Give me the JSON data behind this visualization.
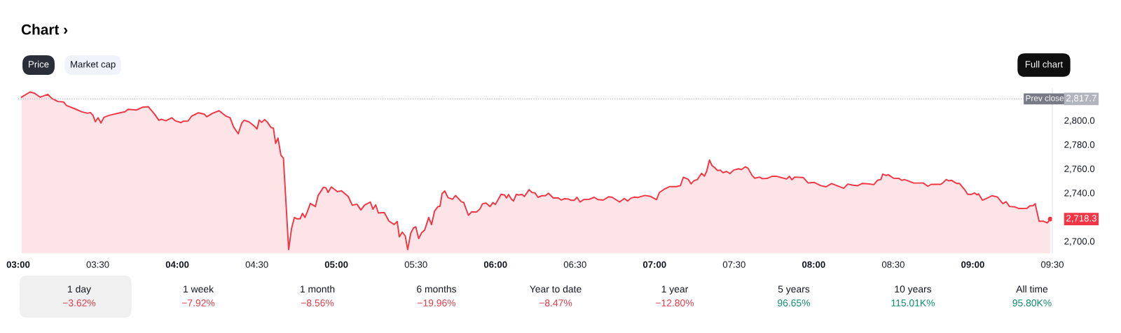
{
  "chart_data": [
    {
      "type": "area",
      "title": "Chart ›",
      "x": [
        3.021,
        3.074,
        3.103,
        3.138,
        3.186,
        3.211,
        3.25,
        3.285,
        3.304,
        3.356,
        3.4,
        3.436,
        3.454,
        3.47,
        3.485,
        3.502,
        3.52,
        3.539,
        3.576,
        3.649,
        3.671,
        3.69,
        3.744,
        3.781,
        3.818,
        3.855,
        3.884,
        3.902,
        3.928,
        3.965,
        3.987,
        4.023,
        4.038,
        4.067,
        4.089,
        4.133,
        4.17,
        4.185,
        4.222,
        4.263,
        4.303,
        4.332,
        4.354,
        4.383,
        4.405,
        4.42,
        4.449,
        4.479,
        4.501,
        4.515,
        4.53,
        4.549,
        4.567,
        4.589,
        4.604,
        4.618,
        4.633,
        4.651,
        4.667,
        4.7,
        4.718,
        4.736,
        4.753,
        4.772,
        4.787,
        4.802,
        4.816,
        4.836,
        4.868,
        4.885,
        4.919,
        4.934,
        4.948,
        4.968,
        5.007,
        5.032,
        5.074,
        5.1,
        5.129,
        5.154,
        5.176,
        5.213,
        5.23,
        5.247,
        5.264,
        5.301,
        5.33,
        5.363,
        5.382,
        5.396,
        5.414,
        5.433,
        5.448,
        5.467,
        5.485,
        5.499,
        5.517,
        5.536,
        5.555,
        5.58,
        5.598,
        5.617,
        5.639,
        5.651,
        5.664,
        5.681,
        5.702,
        5.73,
        5.749,
        5.786,
        5.8,
        5.83,
        5.849,
        5.881,
        5.903,
        5.918,
        5.94,
        5.966,
        5.984,
        5.999,
        6.035,
        6.057,
        6.069,
        6.082,
        6.101,
        6.113,
        6.131,
        6.145,
        6.167,
        6.182,
        6.211,
        6.23,
        6.248,
        6.267,
        6.292,
        6.314,
        6.333,
        6.363,
        6.395,
        6.414,
        6.432,
        6.457,
        6.476,
        6.495,
        6.512,
        6.532,
        6.554,
        6.586,
        6.62,
        6.644,
        6.677,
        6.711,
        6.733,
        6.78,
        6.809,
        6.831,
        6.85,
        6.872,
        6.894,
        6.938,
        6.975,
        7.012,
        7.03,
        7.063,
        7.093,
        7.137,
        7.162,
        7.181,
        7.21,
        7.229,
        7.247,
        7.269,
        7.295,
        7.313,
        7.327,
        7.345,
        7.361,
        7.376,
        7.396,
        7.413,
        7.43,
        7.452,
        7.474,
        7.497,
        7.528,
        7.545,
        7.57,
        7.587,
        7.613,
        7.63,
        7.66,
        7.677,
        7.706,
        7.74,
        7.765,
        7.791,
        7.83,
        7.847,
        7.863,
        7.88,
        7.935,
        7.965,
        8.002,
        8.045,
        8.078,
        8.112,
        8.146,
        8.189,
        8.214,
        8.248,
        8.277,
        8.304,
        8.341,
        8.378,
        8.4,
        8.422,
        8.434,
        8.456,
        8.468,
        8.502,
        8.536,
        8.553,
        8.57,
        8.629,
        8.689,
        8.717,
        8.739,
        8.799,
        8.816,
        8.833,
        8.849,
        8.867,
        8.9,
        8.917,
        8.948,
        8.968,
        8.993,
        9.011,
        9.027,
        9.036,
        9.061,
        9.087,
        9.121,
        9.155,
        9.189,
        9.209,
        9.231,
        9.265,
        9.29,
        9.341,
        9.358,
        9.378,
        9.392,
        9.417,
        9.443,
        9.468,
        9.487
      ],
      "series": [
        {
          "color": "#f23645",
          "values": [
            2819.1,
            2823.4,
            2822.4,
            2819.1,
            2821.4,
            2818.1,
            2815.5,
            2815.1,
            2812.2,
            2809.5,
            2807.0,
            2805.8,
            2806.4,
            2804.1,
            2798.8,
            2802.1,
            2797.7,
            2802.5,
            2804.2,
            2806.5,
            2807.0,
            2809.1,
            2808.5,
            2810.8,
            2811.2,
            2805.4,
            2800.0,
            2800.8,
            2799.6,
            2802.1,
            2799.6,
            2798.1,
            2799.2,
            2799.4,
            2803.3,
            2806.2,
            2805.0,
            2802.9,
            2805.8,
            2807.9,
            2803.7,
            2802.1,
            2794.4,
            2788.8,
            2797.7,
            2800.0,
            2798.8,
            2795.8,
            2792.9,
            2800.2,
            2798.3,
            2800.6,
            2798.3,
            2794.0,
            2793.5,
            2780.9,
            2785.3,
            2771.2,
            2768.7,
            2693.0,
            2710.6,
            2719.6,
            2718.5,
            2718.5,
            2723.0,
            2719.6,
            2723.9,
            2731.2,
            2728.7,
            2737.8,
            2744.6,
            2744.2,
            2740.3,
            2744.8,
            2740.9,
            2741.7,
            2737.0,
            2729.7,
            2730.6,
            2725.8,
            2729.7,
            2732.4,
            2726.4,
            2730.1,
            2723.3,
            2723.7,
            2716.6,
            2713.8,
            2716.2,
            2703.6,
            2707.5,
            2704.2,
            2693.0,
            2706.5,
            2711.0,
            2711.9,
            2702.1,
            2707.1,
            2709.2,
            2719.6,
            2713.7,
            2724.9,
            2728.7,
            2728.7,
            2739.3,
            2741.5,
            2735.9,
            2734.7,
            2737.8,
            2732.6,
            2732.0,
            2721.4,
            2724.1,
            2724.1,
            2726.8,
            2730.9,
            2731.5,
            2728.7,
            2732.0,
            2730.3,
            2738.8,
            2738.2,
            2735.7,
            2738.6,
            2734.5,
            2733.2,
            2738.8,
            2738.2,
            2738.6,
            2737.0,
            2742.6,
            2740.2,
            2740.0,
            2736.3,
            2737.6,
            2737.6,
            2739.6,
            2735.7,
            2735.7,
            2734.0,
            2735.1,
            2734.9,
            2733.8,
            2733.8,
            2736.3,
            2732.4,
            2734.4,
            2734.5,
            2736.3,
            2734.4,
            2734.0,
            2736.7,
            2736.3,
            2732.4,
            2735.3,
            2733.2,
            2735.5,
            2736.4,
            2736.1,
            2737.8,
            2737.0,
            2734.4,
            2740.2,
            2743.2,
            2745.1,
            2745.1,
            2745.9,
            2752.9,
            2751.3,
            2747.4,
            2750.0,
            2751.0,
            2756.1,
            2753.8,
            2757.7,
            2767.1,
            2762.5,
            2761.0,
            2758.4,
            2758.8,
            2756.6,
            2757.7,
            2755.9,
            2758.8,
            2759.9,
            2759.2,
            2761.5,
            2760.4,
            2754.3,
            2752.1,
            2753.0,
            2751.7,
            2751.9,
            2753.7,
            2753.7,
            2752.8,
            2751.4,
            2753.7,
            2750.8,
            2753.0,
            2752.6,
            2748.1,
            2748.6,
            2745.9,
            2745.0,
            2747.7,
            2745.9,
            2743.7,
            2747.2,
            2746.3,
            2745.9,
            2747.7,
            2747.4,
            2746.8,
            2750.3,
            2751.0,
            2755.5,
            2754.3,
            2755.0,
            2752.1,
            2751.9,
            2750.3,
            2751.0,
            2748.1,
            2748.1,
            2745.4,
            2747.0,
            2747.0,
            2748.8,
            2751.0,
            2749.9,
            2750.3,
            2747.7,
            2747.7,
            2742.8,
            2738.8,
            2738.8,
            2739.9,
            2738.3,
            2739.2,
            2733.9,
            2735.4,
            2737.6,
            2736.5,
            2731.0,
            2732.7,
            2728.7,
            2728.3,
            2727.0,
            2727.2,
            2729.2,
            2729.4,
            2731.0,
            2716.5,
            2716.5,
            2715.1,
            2718.3
          ]
        }
      ],
      "xlim": [
        3.0,
        9.5
      ],
      "ylim": [
        2690,
        2826
      ],
      "xticks": [
        {
          "value": 3,
          "label": "03:00"
        },
        {
          "value": 3.5,
          "label": "03:30"
        },
        {
          "value": 4,
          "label": "04:00"
        },
        {
          "value": 4.5,
          "label": "04:30"
        },
        {
          "value": 5,
          "label": "05:00"
        },
        {
          "value": 5.5,
          "label": "05:30"
        },
        {
          "value": 6,
          "label": "06:00"
        },
        {
          "value": 6.5,
          "label": "06:30"
        },
        {
          "value": 7,
          "label": "07:00"
        },
        {
          "value": 7.5,
          "label": "07:30"
        },
        {
          "value": 8,
          "label": "08:00"
        },
        {
          "value": 8.5,
          "label": "08:30"
        },
        {
          "value": 9,
          "label": "09:00"
        },
        {
          "value": 9.5,
          "label": "09:30"
        }
      ],
      "yticks": [
        {
          "value": 2700,
          "label": "2,700.0"
        },
        {
          "value": 2740,
          "label": "2,740.0"
        },
        {
          "value": 2760,
          "label": "2,760.0"
        },
        {
          "value": 2780,
          "label": "2,780.0"
        },
        {
          "value": 2800,
          "label": "2,800.0"
        }
      ],
      "ref_lines": [
        {
          "axis": "y",
          "value": 2817.7,
          "label": "Prev close",
          "color": "#b2b5be",
          "line_style": "dotted"
        }
      ],
      "annotations": [
        "Price",
        "Market cap",
        "Full chart",
        "2,817.7",
        {
          "text": "2,718.3",
          "x": 9.487,
          "y": 2718.3
        }
      ],
      "grid": false,
      "legend": false
    },
    {
      "type": "other",
      "annotations": [
        "1 day",
        "−3.62%",
        "1 week",
        "−7.92%",
        "1 month",
        "−8.56%",
        "6 months",
        "−19.96%",
        "Year to date",
        "−8.47%",
        "1 year",
        "−12.80%",
        "5 years",
        "96.65%",
        "10 years",
        "115.01K%",
        "All time",
        "95.80K%"
      ]
    }
  ]
}
